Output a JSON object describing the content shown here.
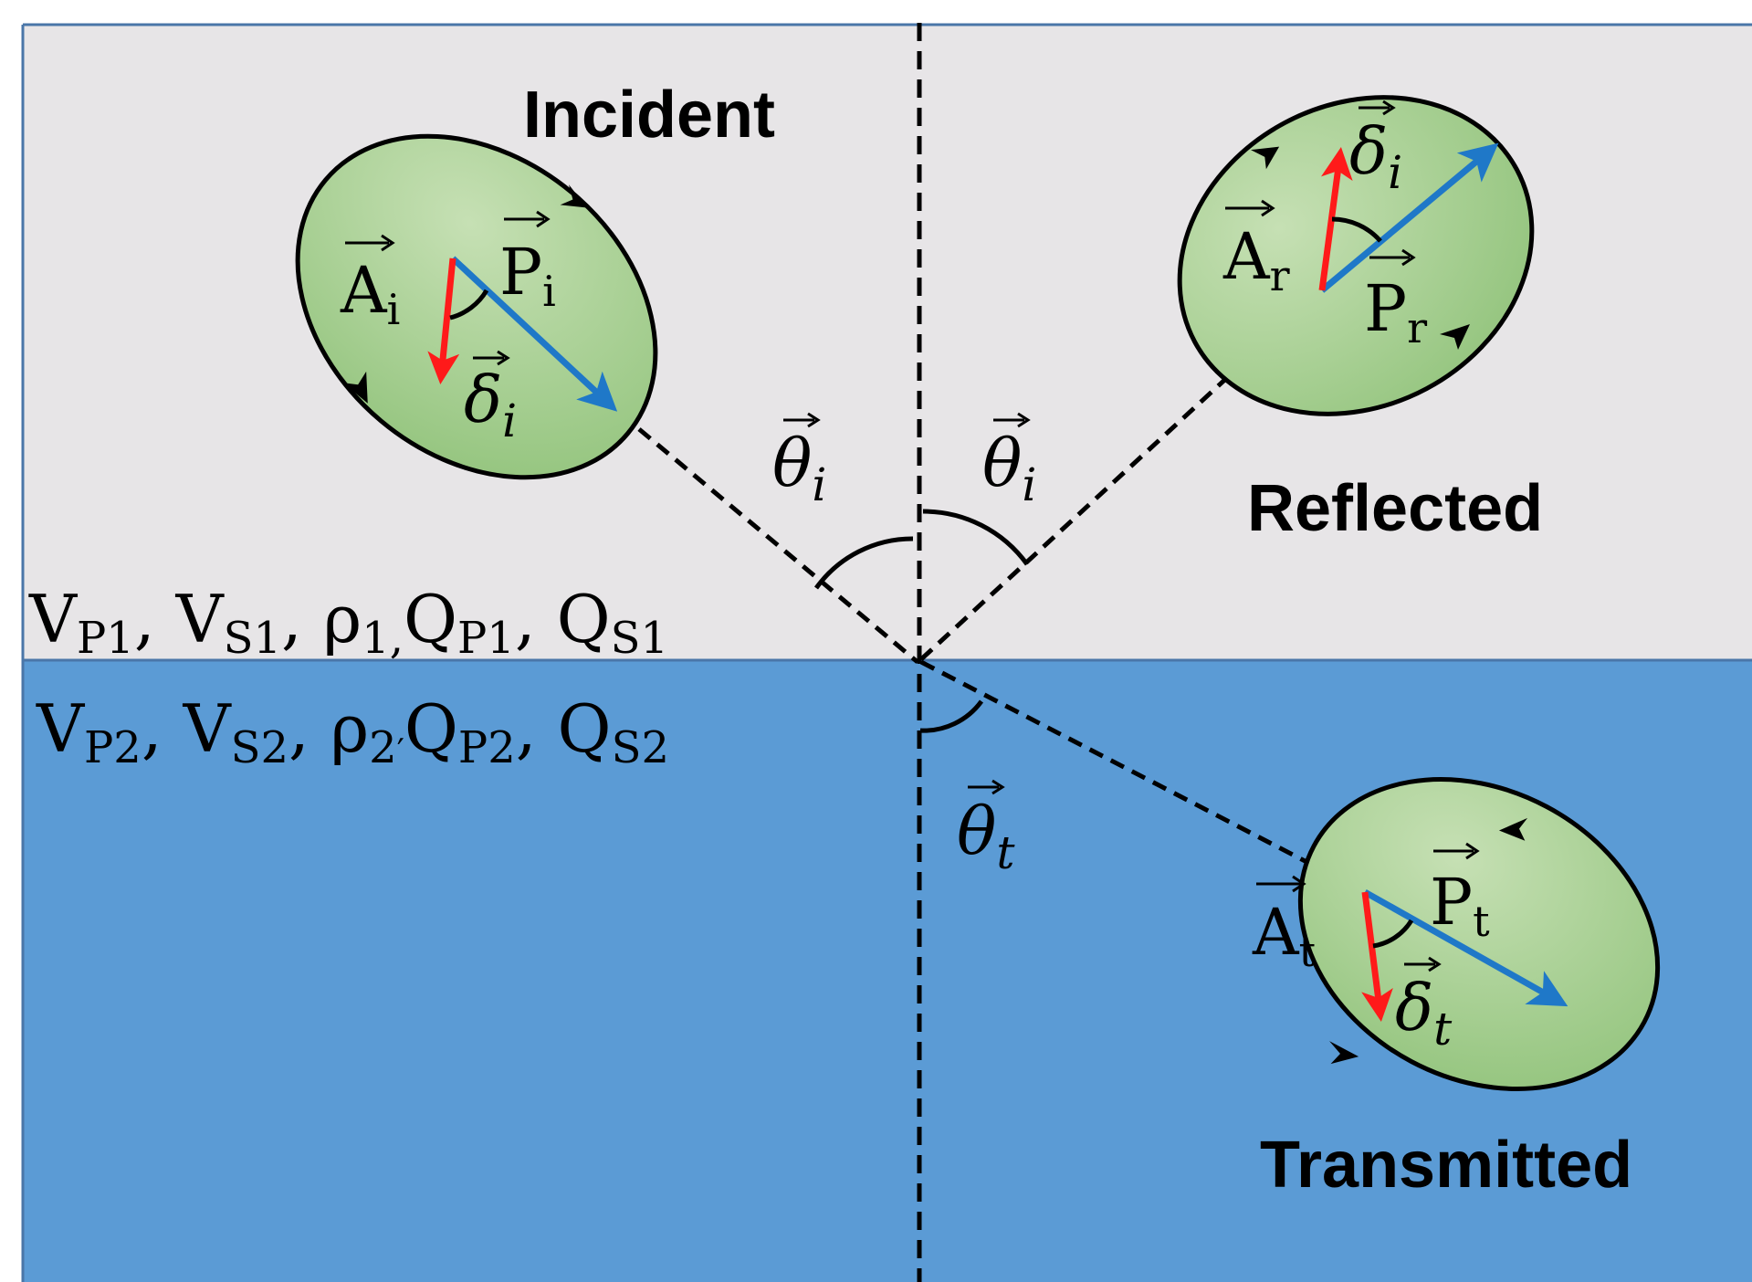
{
  "waves": {
    "incident": {
      "label": "Incident",
      "amp_base": "A",
      "amp_sub": "i",
      "pol_base": "P",
      "pol_sub": "i",
      "del_base": "δ",
      "del_sub": "i"
    },
    "reflected": {
      "label": "Reflected",
      "amp_base": "A",
      "amp_sub": "r",
      "pol_base": "P",
      "pol_sub": "r",
      "del_base": "δ",
      "del_sub": "i"
    },
    "transmitted": {
      "label": "Transmitted",
      "amp_base": "A",
      "amp_sub": "t",
      "pol_base": "P",
      "pol_sub": "t",
      "del_base": "δ",
      "del_sub": "t"
    }
  },
  "angles": {
    "incidence": {
      "base": "θ",
      "sub": "i"
    },
    "reflection": {
      "base": "θ",
      "sub": "i"
    },
    "transmission": {
      "base": "θ",
      "sub": "t"
    }
  },
  "media": {
    "upper": {
      "vp": "V",
      "vp_sub": "P1",
      "vs": "V",
      "vs_sub": "S1",
      "rho": "ρ",
      "rho_sub": "1,",
      "qp": "Q",
      "qp_sub": "P1",
      "qs": "Q",
      "qs_sub": "S1"
    },
    "lower": {
      "vp": "V",
      "vp_sub": "P2",
      "vs": "V",
      "vs_sub": "S2",
      "rho": "ρ",
      "rho_sub": "2",
      "qp": "Q",
      "qp_sub": "P2",
      "qs": "Q",
      "qs_sub": "S2"
    },
    "sep": ", ",
    "tick": "′"
  },
  "colors": {
    "upper_medium": "#e7e5e7",
    "lower_medium": "#5b9bd5",
    "border": "#4a76a8",
    "ellipse_fill": "#a9d18e",
    "pol_arrow": "#1f78c8",
    "del_arrow": "#ff1a1a",
    "line": "#000000"
  }
}
